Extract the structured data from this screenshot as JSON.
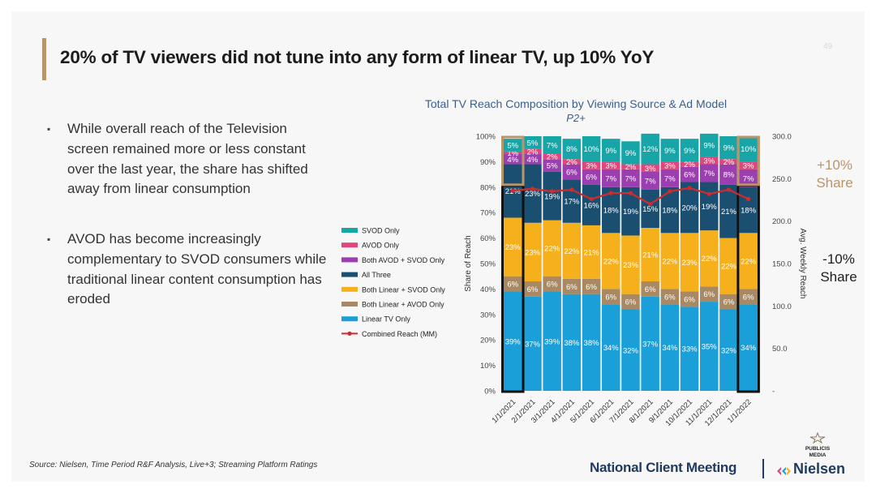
{
  "slide": {
    "title": "20% of TV viewers did not tune into any form of linear TV, up 10% YoY",
    "page_number": "49",
    "bullets": [
      "While overall reach of the Television screen remained more or less constant over the last year, the share has shifted away from linear consumption",
      "AVOD has become increasingly complementary to SVOD consumers while traditional linear content consumption has eroded"
    ],
    "bullet_marker": "▪",
    "callout_up": [
      "+10%",
      "Share"
    ],
    "callout_down": [
      "-10%",
      "Share"
    ],
    "source": "Source: Nielsen, Time Period R&F Analysis, Live+3; Streaming Platform Ratings",
    "footer_meeting": "National Client Meeting",
    "footer_brand": "Nielsen",
    "publicis_logo": [
      "PUBLICIS",
      "MEDIA"
    ],
    "colors": {
      "accent": "#b8956a",
      "title_text": "#1c1c1c",
      "brand_navy": "#1f3a5f"
    }
  },
  "chart_data": {
    "type": "bar",
    "stacked": true,
    "title": "Total TV Reach Composition by Viewing Source & Ad Model",
    "subtitle": "P2+",
    "ylabel": "Share of Reach",
    "y2label": "Avg. Weekly Reach",
    "ylim": [
      0,
      100
    ],
    "y2lim": [
      0,
      300
    ],
    "y_ticks": [
      "0%",
      "10%",
      "20%",
      "30%",
      "40%",
      "50%",
      "60%",
      "70%",
      "80%",
      "90%",
      "100%"
    ],
    "y2_ticks": [
      "-",
      "50.0",
      "100.0",
      "150.0",
      "200.0",
      "250.0",
      "300.0"
    ],
    "categories": [
      "1/1/2021",
      "2/1/2021",
      "3/1/2021",
      "4/1/2021",
      "5/1/2021",
      "6/1/2021",
      "7/1/2021",
      "8/1/2021",
      "9/1/2021",
      "10/1/2021",
      "11/1/2021",
      "12/1/2021",
      "1/1/2022"
    ],
    "series": [
      {
        "name": "Linear TV Only",
        "color": "#1a9fd8",
        "values": [
          39,
          37,
          39,
          38,
          38,
          34,
          32,
          37,
          34,
          33,
          35,
          32,
          34
        ]
      },
      {
        "name": "Both Linear + AVOD Only",
        "color": "#a88963",
        "values": [
          6,
          6,
          6,
          6,
          6,
          6,
          6,
          6,
          6,
          6,
          6,
          6,
          6
        ]
      },
      {
        "name": "Both Linear + SVOD Only",
        "color": "#f6b01c",
        "values": [
          23,
          23,
          22,
          22,
          21,
          22,
          23,
          21,
          22,
          23,
          22,
          22,
          22
        ]
      },
      {
        "name": "All Three",
        "color": "#1b4f72",
        "values": [
          21,
          23,
          19,
          17,
          16,
          18,
          19,
          15,
          18,
          20,
          19,
          21,
          18
        ]
      },
      {
        "name": "Both AVOD + SVOD Only",
        "color": "#9b3fb0",
        "values": [
          4,
          4,
          5,
          6,
          6,
          7,
          7,
          7,
          7,
          6,
          7,
          8,
          7
        ]
      },
      {
        "name": "AVOD Only",
        "color": "#e0457b",
        "values": [
          1,
          2,
          2,
          2,
          3,
          3,
          2,
          3,
          3,
          2,
          3,
          2,
          3
        ]
      },
      {
        "name": "SVOD Only",
        "color": "#17a5a8",
        "values": [
          5,
          5,
          7,
          8,
          10,
          9,
          9,
          12,
          9,
          9,
          9,
          9,
          10
        ]
      }
    ],
    "legend_order": [
      "SVOD Only",
      "AVOD Only",
      "Both AVOD + SVOD Only",
      "All Three",
      "Both Linear + SVOD Only",
      "Both Linear + AVOD Only",
      "Linear TV Only",
      "Combined Reach (MM)"
    ],
    "line": {
      "name": "Combined Reach (MM)",
      "color": "#d12b2b",
      "axis": "y2",
      "values": [
        236,
        238,
        235,
        237,
        226,
        233,
        233,
        220,
        235,
        239,
        232,
        237,
        226
      ]
    },
    "highlighted_categories": [
      "1/1/2021",
      "1/1/2022"
    ],
    "legend_position": "left"
  }
}
